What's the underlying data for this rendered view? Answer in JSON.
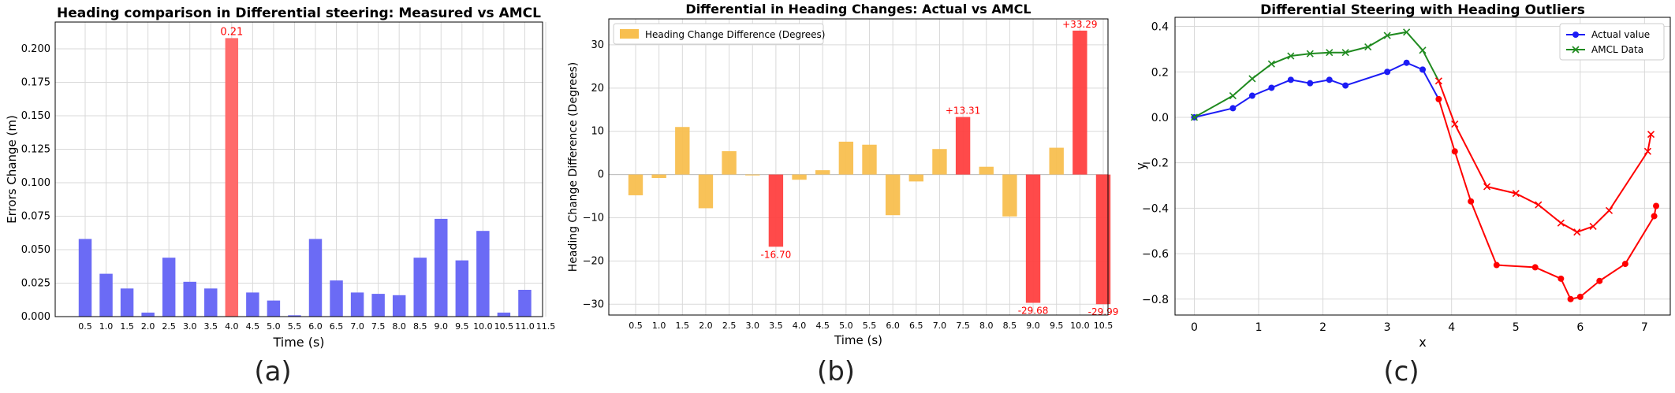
{
  "chart_data": [
    {
      "type": "bar",
      "title": "Heading comparison in Differential steering: Measured vs AMCL",
      "xlabel": "Time (s)",
      "ylabel": "Errors Change (m)",
      "caption": "(a)",
      "categories": [
        "0.5",
        "1.0",
        "1.5",
        "2.0",
        "2.5",
        "3.0",
        "3.5",
        "4.0",
        "4.5",
        "5.0",
        "5.5",
        "6.0",
        "6.5",
        "7.0",
        "7.5",
        "8.0",
        "8.5",
        "9.0",
        "9.5",
        "10.0",
        "10.5",
        "11.0",
        "11.5"
      ],
      "values": [
        0.058,
        0.032,
        0.021,
        0.003,
        0.044,
        0.026,
        0.021,
        0.208,
        0.018,
        0.012,
        0.001,
        0.058,
        0.027,
        0.018,
        0.017,
        0.016,
        0.044,
        0.073,
        0.042,
        0.064,
        0.003,
        0.02,
        0.0
      ],
      "highlight_index": 7,
      "annotations": [
        {
          "category": "4.0",
          "text": "0.21"
        }
      ],
      "ylim": [
        0,
        0.22
      ],
      "yticks": [
        "0.000",
        "0.025",
        "0.050",
        "0.075",
        "0.100",
        "0.125",
        "0.150",
        "0.175",
        "0.200"
      ],
      "grid": true,
      "colors": {
        "normal": "#6b6bf5",
        "highlight": "#ff6b6b",
        "annotation": "#ff0000"
      }
    },
    {
      "type": "bar",
      "title": "Differential in Heading Changes: Actual vs AMCL",
      "xlabel": "Time (s)",
      "ylabel": "Heading Change Difference (Degrees)",
      "caption": "(b)",
      "categories": [
        "0.5",
        "1.0",
        "1.5",
        "2.0",
        "2.5",
        "3.0",
        "3.5",
        "4.0",
        "4.5",
        "5.0",
        "5.5",
        "6.0",
        "6.5",
        "7.0",
        "7.5",
        "8.0",
        "8.5",
        "9.0",
        "9.5",
        "10.0",
        "10.5"
      ],
      "series": [
        {
          "name": "Heading Change Difference (Degrees)",
          "values": [
            -4.8,
            -0.8,
            11.0,
            -7.8,
            5.4,
            -0.2,
            -16.7,
            -1.2,
            1.0,
            7.6,
            6.9,
            -9.4,
            -1.6,
            5.9,
            13.31,
            1.8,
            -9.7,
            -29.68,
            6.2,
            33.29,
            -29.99
          ]
        }
      ],
      "outlier_indices": [
        6,
        14,
        17,
        19,
        20
      ],
      "annotations": [
        {
          "category": "3.5",
          "text": "-16.70"
        },
        {
          "category": "7.5",
          "text": "+13.31"
        },
        {
          "category": "9.0",
          "text": "-29.68"
        },
        {
          "category": "10.0",
          "text": "+33.29"
        },
        {
          "category": "10.5",
          "text": "-29.99"
        }
      ],
      "ylim": [
        -32.5,
        36
      ],
      "yticks": [
        "−30",
        "−20",
        "−10",
        "0",
        "10",
        "20",
        "30"
      ],
      "legend": "top-left",
      "grid": true,
      "colors": {
        "normal": "#f8bf4f",
        "outlier": "#ff4040",
        "annotation": "#ff0000"
      }
    },
    {
      "type": "line",
      "title": "Differential Steering with Heading Outliers",
      "xlabel": "x",
      "ylabel": "y",
      "caption": "(c)",
      "series": [
        {
          "name": "Actual value",
          "color": "#1c1cf5",
          "marker": "circle",
          "x": [
            0.0,
            0.6,
            0.9,
            1.2,
            1.5,
            1.8,
            2.1,
            2.35,
            3.0,
            3.3,
            3.55,
            3.8,
            4.05,
            4.3,
            4.7,
            5.3,
            5.7,
            5.85,
            6.0,
            6.3,
            6.7,
            7.15,
            7.18
          ],
          "y": [
            0.0,
            0.04,
            0.095,
            0.13,
            0.165,
            0.15,
            0.165,
            0.14,
            0.2,
            0.24,
            0.21,
            0.08,
            -0.15,
            -0.37,
            -0.65,
            -0.66,
            -0.71,
            -0.8,
            -0.79,
            -0.72,
            -0.645,
            -0.435,
            -0.39
          ]
        },
        {
          "name": "AMCL Data",
          "color": "#1f8a1f",
          "marker": "x",
          "x": [
            0.0,
            0.6,
            0.9,
            1.2,
            1.5,
            1.8,
            2.1,
            2.35,
            2.7,
            3.0,
            3.3,
            3.55,
            3.8,
            4.05,
            4.55,
            5.0,
            5.35,
            5.7,
            5.95,
            6.2,
            6.45,
            7.05,
            7.1
          ],
          "y": [
            0.0,
            0.095,
            0.17,
            0.235,
            0.27,
            0.28,
            0.285,
            0.285,
            0.31,
            0.36,
            0.375,
            0.295,
            0.16,
            -0.03,
            -0.305,
            -0.335,
            -0.385,
            -0.465,
            -0.505,
            -0.48,
            -0.41,
            -0.15,
            -0.075
          ]
        }
      ],
      "outlier_color": "#ff0000",
      "outlier_from_x": 3.8,
      "xlim": [
        -0.3,
        7.4
      ],
      "ylim": [
        -0.87,
        0.44
      ],
      "xticks": [
        "0",
        "1",
        "2",
        "3",
        "4",
        "5",
        "6",
        "7"
      ],
      "yticks": [
        "−0.8",
        "−0.6",
        "−0.4",
        "−0.2",
        "0.0",
        "0.2",
        "0.4"
      ],
      "legend": "top-right",
      "grid": true
    }
  ]
}
